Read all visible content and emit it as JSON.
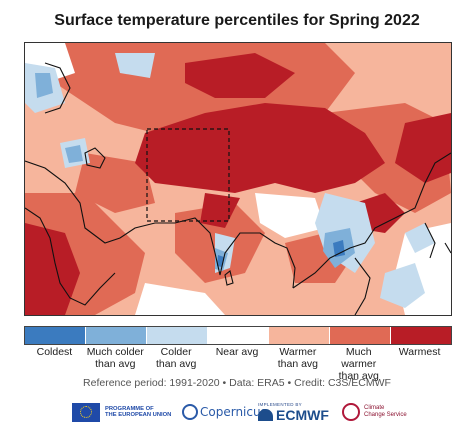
{
  "title": "Surface temperature percentiles for Spring 2022",
  "colors": {
    "coldest": "#3b7bbf",
    "much_colder": "#7fb0d9",
    "colder": "#c5dcee",
    "near": "#ffffff",
    "warmer": "#f6b59c",
    "much_warmer": "#e06a55",
    "warmest": "#b81d26",
    "coastline": "#111111"
  },
  "legend": {
    "items": [
      {
        "label": "Coldest",
        "color": "#3b7bbf"
      },
      {
        "label": "Much colder\nthan avg",
        "color": "#7fb0d9"
      },
      {
        "label": "Colder\nthan avg",
        "color": "#c5dcee"
      },
      {
        "label": "Near avg",
        "color": "#ffffff"
      },
      {
        "label": "Warmer\nthan avg",
        "color": "#f6b59c"
      },
      {
        "label": "Much warmer\nthan avg",
        "color": "#e06a55"
      },
      {
        "label": "Warmest",
        "color": "#b81d26"
      }
    ]
  },
  "reference": "Reference period: 1991-2020  •  Data: ERA5  •  Credit: C3S/ECMWF",
  "logos": {
    "eu": "PROGRAMME OF\nTHE EUROPEAN UNION",
    "copernicus": "Copernicus",
    "ecmwf_tag": "IMPLEMENTED BY",
    "ecmwf": "ECMWF",
    "c3s": "Climate\nChange Service"
  }
}
